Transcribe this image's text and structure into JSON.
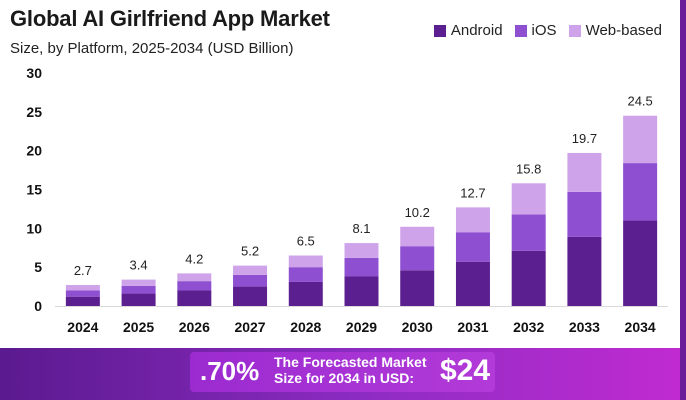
{
  "header": {
    "title": "Global AI Girlfriend App Market",
    "subtitle": "Size, by Platform, 2025-2034 (USD Billion)"
  },
  "legend": [
    {
      "label": "Android",
      "color": "#5c1f8f"
    },
    {
      "label": "iOS",
      "color": "#8e4fd0"
    },
    {
      "label": "Web-based",
      "color": "#cfa3ea"
    }
  ],
  "footer": {
    "cagr_text": ".70%",
    "forecast_label": "The Forecasted Market Size for 2034 in USD:",
    "forecast_value": "$24"
  },
  "chart_data": {
    "type": "bar",
    "stacked": true,
    "title": "Global AI Girlfriend App Market",
    "subtitle": "Size, by Platform, 2025-2034 (USD Billion)",
    "xlabel": "",
    "ylabel": "",
    "ylim": [
      0,
      30
    ],
    "yticks": [
      0,
      5,
      10,
      15,
      20,
      25,
      30
    ],
    "grid": false,
    "legend_position": "top-right",
    "categories": [
      "2024",
      "2025",
      "2026",
      "2027",
      "2028",
      "2029",
      "2030",
      "2031",
      "2032",
      "2033",
      "2034"
    ],
    "series": [
      {
        "name": "Android",
        "color": "#5c1f8f",
        "values": [
          1.2,
          1.6,
          2.0,
          2.5,
          3.1,
          3.8,
          4.6,
          5.7,
          7.1,
          8.9,
          11.0
        ]
      },
      {
        "name": "iOS",
        "color": "#8e4fd0",
        "values": [
          0.8,
          1.0,
          1.2,
          1.5,
          1.9,
          2.4,
          3.1,
          3.8,
          4.7,
          5.8,
          7.4
        ]
      },
      {
        "name": "Web-based",
        "color": "#cfa3ea",
        "values": [
          0.7,
          0.8,
          1.0,
          1.2,
          1.5,
          1.9,
          2.5,
          3.2,
          4.0,
          5.0,
          6.1
        ]
      }
    ],
    "totals": [
      "2.7",
      "3.4",
      "4.2",
      "5.2",
      "6.5",
      "8.1",
      "10.2",
      "12.7",
      "15.8",
      "19.7",
      "24.5"
    ]
  }
}
